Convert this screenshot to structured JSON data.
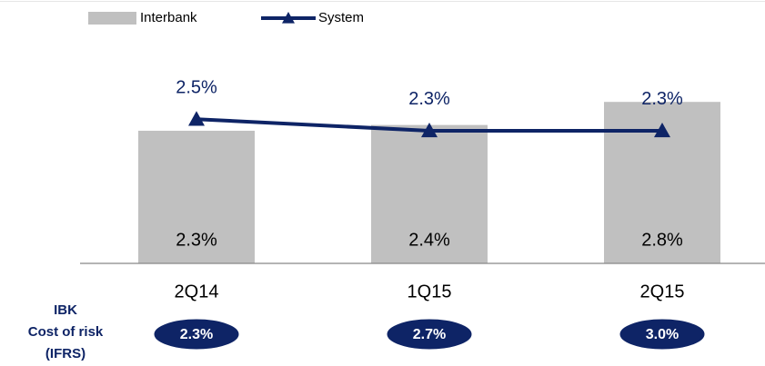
{
  "chart_data": {
    "type": "bar_line",
    "categories": [
      "2Q14",
      "1Q15",
      "2Q15"
    ],
    "series": [
      {
        "name": "Interbank",
        "type": "bar",
        "color": "#c0c0c0",
        "values": [
          2.3,
          2.4,
          2.8
        ],
        "value_labels": [
          "2.3%",
          "2.4%",
          "2.8%"
        ]
      },
      {
        "name": "System",
        "type": "line",
        "color": "#0e2466",
        "values": [
          2.5,
          2.3,
          2.3
        ],
        "value_labels": [
          "2.5%",
          "2.3%",
          "2.3%"
        ]
      }
    ],
    "ylim": [
      0,
      4
    ],
    "legend": "top-left",
    "summary": {
      "label": [
        "IBK",
        "Cost of risk",
        "(IFRS)"
      ],
      "color": "#0e2466",
      "values": [
        2.3,
        2.7,
        3.0
      ],
      "value_labels": [
        "2.3%",
        "2.7%",
        "3.0%"
      ]
    }
  }
}
